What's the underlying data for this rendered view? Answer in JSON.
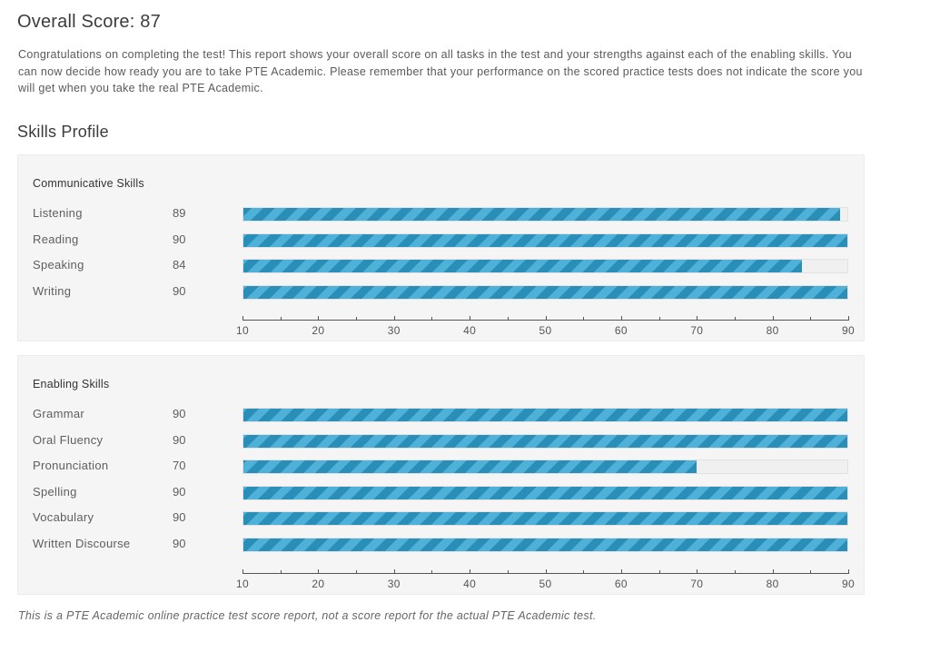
{
  "header": {
    "title": "Overall Score: 87",
    "intro": "Congratulations on completing the test! This report shows your overall score on all tasks in the test and your strengths against each of the enabling skills. You can now decide how ready you are to take PTE Academic. Please remember that your performance on the scored practice tests does not indicate the score you will get when you take the real PTE Academic."
  },
  "skills_profile": {
    "title": "Skills Profile"
  },
  "colors": {
    "bar_primary": "#2a8fb8",
    "bar_stripe": "#4fb1d8",
    "panel_bg": "#f5f5f5"
  },
  "chart_data": [
    {
      "type": "bar",
      "title": "Communicative Skills",
      "categories": [
        "Listening",
        "Reading",
        "Speaking",
        "Writing"
      ],
      "values": [
        89,
        90,
        84,
        90
      ],
      "score_labels": [
        "89",
        "90",
        "84",
        "90"
      ],
      "xlim": [
        10,
        90
      ],
      "ticks": [
        "10",
        "20",
        "30",
        "40",
        "50",
        "60",
        "70",
        "80",
        "90"
      ],
      "orientation": "horizontal"
    },
    {
      "type": "bar",
      "title": "Enabling Skills",
      "categories": [
        "Grammar",
        "Oral Fluency",
        "Pronunciation",
        "Spelling",
        "Vocabulary",
        "Written Discourse"
      ],
      "values": [
        90,
        90,
        70,
        90,
        90,
        90
      ],
      "score_labels": [
        "90",
        "90",
        "70",
        "90",
        "90",
        "90"
      ],
      "xlim": [
        10,
        90
      ],
      "ticks": [
        "10",
        "20",
        "30",
        "40",
        "50",
        "60",
        "70",
        "80",
        "90"
      ],
      "orientation": "horizontal"
    }
  ],
  "footer": {
    "note": "This is a PTE Academic online practice test score report, not a score report for the actual PTE Academic test."
  }
}
